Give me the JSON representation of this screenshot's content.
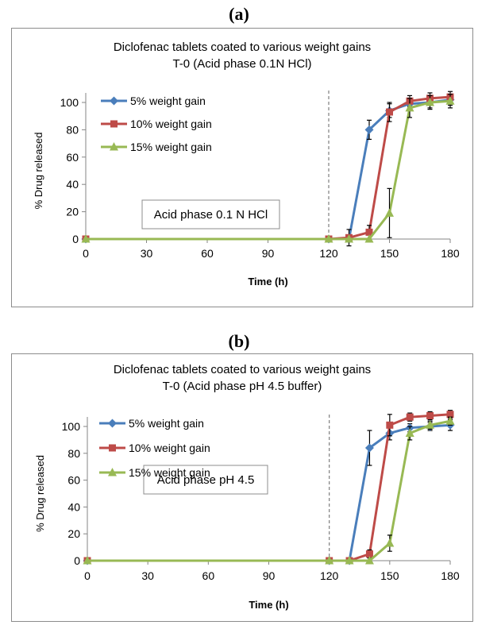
{
  "panels": [
    {
      "label": "(a)"
    },
    {
      "label": "(b)"
    }
  ],
  "colors": {
    "series": [
      "#4a7ebb",
      "#be4b48",
      "#98b954"
    ],
    "axis": "#868686",
    "divider": "#7f7f7f"
  },
  "chart_data": [
    {
      "type": "line",
      "title": "Diclofenac tablets coated to various weight gains",
      "subtitle": "T-0 (Acid phase 0.1N HCl)",
      "xlabel": "Time (h)",
      "ylabel": "% Drug released",
      "annotation": "Acid phase 0.1 N HCl",
      "xlim": [
        0,
        180
      ],
      "ylim": [
        0,
        100
      ],
      "xticks": [
        0,
        30,
        60,
        90,
        120,
        150,
        180
      ],
      "yticks": [
        0,
        20,
        40,
        60,
        80,
        100
      ],
      "x": [
        0,
        120,
        130,
        140,
        150,
        160,
        170,
        180
      ],
      "grid": false,
      "legend_position": "top-left",
      "divider_x": 120,
      "series": [
        {
          "name": "5% weight gain",
          "marker": "diamond",
          "values": [
            0,
            0,
            0,
            80,
            94,
            99,
            100,
            102
          ],
          "errors": [
            0,
            0,
            0,
            7,
            5,
            3,
            4,
            4
          ]
        },
        {
          "name": "10% weight gain",
          "marker": "square",
          "values": [
            0,
            0,
            1,
            5,
            93,
            101,
            103,
            104
          ],
          "errors": [
            0,
            0,
            6,
            5,
            7,
            4,
            4,
            4
          ]
        },
        {
          "name": "15% weight gain",
          "marker": "triangle",
          "values": [
            0,
            0,
            0,
            0,
            19,
            96,
            100,
            101
          ],
          "errors": [
            0,
            0,
            0,
            0,
            18,
            7,
            5,
            5
          ]
        }
      ]
    },
    {
      "type": "line",
      "title": "Diclofenac tablets coated to various weight gains",
      "subtitle": "T-0 (Acid phase pH 4.5 buffer)",
      "xlabel": "Time (h)",
      "ylabel": "% Drug released",
      "annotation": "Acid phase pH 4.5",
      "xlim": [
        0,
        180
      ],
      "ylim": [
        0,
        100
      ],
      "xticks": [
        0,
        30,
        60,
        90,
        120,
        150,
        180
      ],
      "yticks": [
        0,
        20,
        40,
        60,
        80,
        100
      ],
      "x": [
        0,
        120,
        130,
        140,
        150,
        160,
        170,
        180
      ],
      "grid": false,
      "legend_position": "top-left",
      "divider_x": 120,
      "series": [
        {
          "name": "5% weight gain",
          "marker": "diamond",
          "values": [
            0,
            0,
            0,
            84,
            95,
            99,
            100,
            101
          ],
          "errors": [
            0,
            0,
            0,
            13,
            5,
            3,
            3,
            4
          ]
        },
        {
          "name": "10% weight gain",
          "marker": "square",
          "values": [
            0,
            0,
            0,
            5,
            101,
            107,
            108,
            109
          ],
          "errors": [
            0,
            0,
            0,
            3,
            8,
            3,
            3,
            3
          ]
        },
        {
          "name": "15% weight gain",
          "marker": "triangle",
          "values": [
            0,
            0,
            0,
            0,
            13,
            95,
            101,
            104
          ],
          "errors": [
            0,
            0,
            0,
            0,
            6,
            5,
            3,
            3
          ]
        }
      ]
    }
  ]
}
